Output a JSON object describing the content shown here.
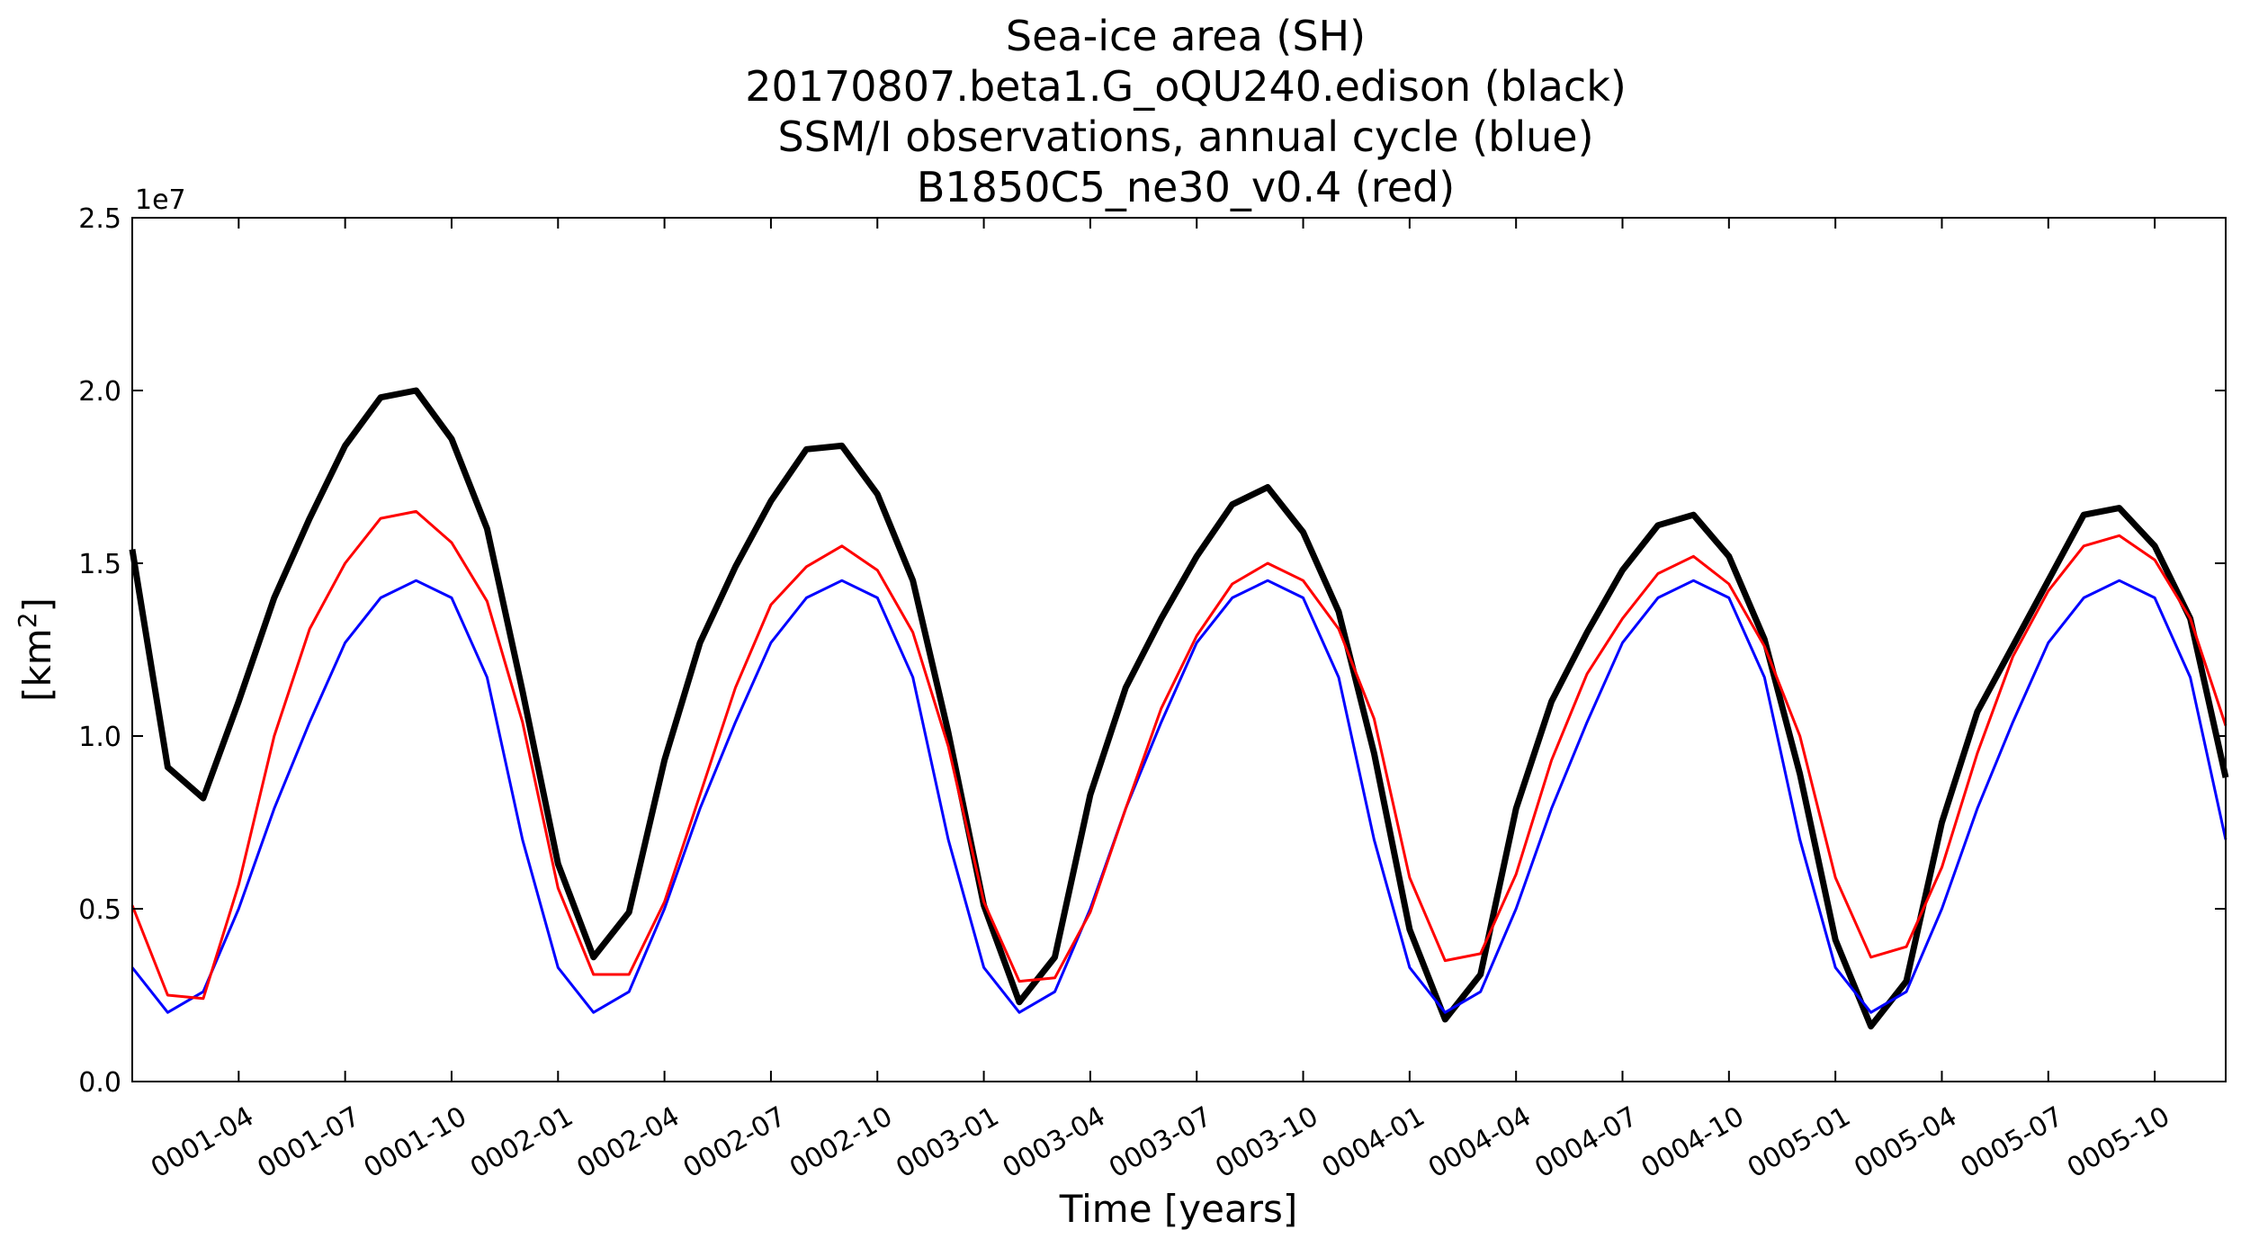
{
  "chart_data": {
    "type": "line",
    "title_lines": [
      "Sea-ice area (SH)",
      "20170807.beta1.G_oQU240.edison (black)",
      "SSM/I observations, annual cycle (blue)",
      "B1850C5_ne30_v0.4 (red)"
    ],
    "xlabel": "Time [years]",
    "ylabel": "[km",
    "ylabel_sup": "2",
    "ylabel_close": "]",
    "y_exponent": "1e7",
    "ylim": [
      0.0,
      2.5
    ],
    "y_ticks": [
      {
        "value": 0.0,
        "label": "0.0"
      },
      {
        "value": 0.5,
        "label": "0.5"
      },
      {
        "value": 1.0,
        "label": "1.0"
      },
      {
        "value": 1.5,
        "label": "1.5"
      },
      {
        "value": 2.0,
        "label": "2.0"
      },
      {
        "value": 2.5,
        "label": "2.5"
      }
    ],
    "xlim": [
      "0001-01",
      "0005-12"
    ],
    "x_ticks": [
      "0001-04",
      "0001-07",
      "0001-10",
      "0002-01",
      "0002-04",
      "0002-07",
      "0002-10",
      "0003-01",
      "0003-04",
      "0003-07",
      "0003-10",
      "0004-01",
      "0004-04",
      "0004-07",
      "0004-10",
      "0005-01",
      "0005-04",
      "0005-07",
      "0005-10"
    ],
    "x": [
      "0001-01",
      "0001-02",
      "0001-03",
      "0001-04",
      "0001-05",
      "0001-06",
      "0001-07",
      "0001-08",
      "0001-09",
      "0001-10",
      "0001-11",
      "0001-12",
      "0002-01",
      "0002-02",
      "0002-03",
      "0002-04",
      "0002-05",
      "0002-06",
      "0002-07",
      "0002-08",
      "0002-09",
      "0002-10",
      "0002-11",
      "0002-12",
      "0003-01",
      "0003-02",
      "0003-03",
      "0003-04",
      "0003-05",
      "0003-06",
      "0003-07",
      "0003-08",
      "0003-09",
      "0003-10",
      "0003-11",
      "0003-12",
      "0004-01",
      "0004-02",
      "0004-03",
      "0004-04",
      "0004-05",
      "0004-06",
      "0004-07",
      "0004-08",
      "0004-09",
      "0004-10",
      "0004-11",
      "0004-12",
      "0005-01",
      "0005-02",
      "0005-03",
      "0005-04",
      "0005-05",
      "0005-06",
      "0005-07",
      "0005-08",
      "0005-09",
      "0005-10",
      "0005-11",
      "0005-12"
    ],
    "series": [
      {
        "name": "20170807.beta1.G_oQU240.edison (black)",
        "color": "#000000",
        "width": 7,
        "values": [
          1.54,
          0.91,
          0.82,
          1.1,
          1.4,
          1.63,
          1.84,
          1.98,
          2.0,
          1.86,
          1.6,
          1.13,
          0.63,
          0.36,
          0.49,
          0.93,
          1.27,
          1.49,
          1.68,
          1.83,
          1.84,
          1.7,
          1.45,
          1.01,
          0.51,
          0.23,
          0.36,
          0.83,
          1.14,
          1.34,
          1.52,
          1.67,
          1.72,
          1.59,
          1.36,
          0.95,
          0.44,
          0.18,
          0.31,
          0.79,
          1.1,
          1.3,
          1.48,
          1.61,
          1.64,
          1.52,
          1.28,
          0.89,
          0.41,
          0.16,
          0.29,
          0.75,
          1.07,
          1.26,
          1.45,
          1.64,
          1.66,
          1.55,
          1.34,
          0.88
        ]
      },
      {
        "name": "SSM/I observations, annual cycle (blue)",
        "color": "#0000ff",
        "width": 3,
        "values": [
          0.33,
          0.2,
          0.26,
          0.5,
          0.79,
          1.04,
          1.27,
          1.4,
          1.45,
          1.4,
          1.17,
          0.7,
          0.33,
          0.2,
          0.26,
          0.5,
          0.79,
          1.04,
          1.27,
          1.4,
          1.45,
          1.4,
          1.17,
          0.7,
          0.33,
          0.2,
          0.26,
          0.5,
          0.79,
          1.04,
          1.27,
          1.4,
          1.45,
          1.4,
          1.17,
          0.7,
          0.33,
          0.2,
          0.26,
          0.5,
          0.79,
          1.04,
          1.27,
          1.4,
          1.45,
          1.4,
          1.17,
          0.7,
          0.33,
          0.2,
          0.26,
          0.5,
          0.79,
          1.04,
          1.27,
          1.4,
          1.45,
          1.4,
          1.17,
          0.7
        ]
      },
      {
        "name": "B1850C5_ne30_v0.4 (red)",
        "color": "#ff0000",
        "width": 3,
        "values": [
          0.51,
          0.25,
          0.24,
          0.57,
          1.0,
          1.31,
          1.5,
          1.63,
          1.65,
          1.56,
          1.39,
          1.04,
          0.56,
          0.31,
          0.31,
          0.52,
          0.83,
          1.14,
          1.38,
          1.49,
          1.55,
          1.48,
          1.3,
          0.97,
          0.52,
          0.29,
          0.3,
          0.49,
          0.79,
          1.08,
          1.29,
          1.44,
          1.5,
          1.45,
          1.31,
          1.05,
          0.59,
          0.35,
          0.37,
          0.6,
          0.93,
          1.18,
          1.34,
          1.47,
          1.52,
          1.44,
          1.26,
          1.0,
          0.59,
          0.36,
          0.39,
          0.62,
          0.95,
          1.23,
          1.42,
          1.55,
          1.58,
          1.51,
          1.34,
          1.03
        ]
      }
    ]
  }
}
